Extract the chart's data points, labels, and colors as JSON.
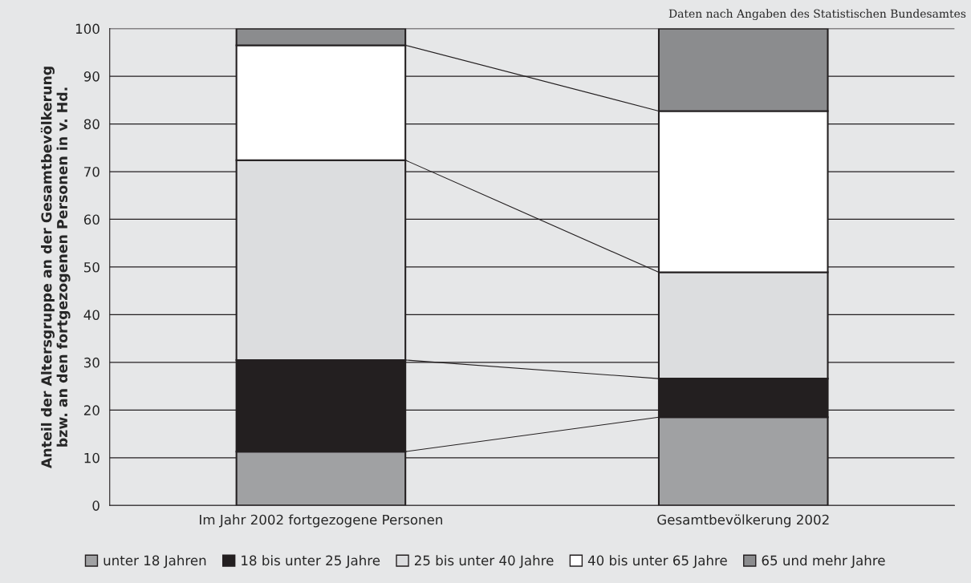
{
  "chart_data": {
    "type": "bar",
    "stacked": true,
    "ylabel": "Anteil der Altersgruppe an der Gesamtbevölkerung\nbzw. an den fortgezogenen Personen in v. Hd.",
    "categories": [
      "Im Jahr 2002 fortgezogene Personen",
      "Gesamtbevölkerung 2002"
    ],
    "series": [
      {
        "name": "unter 18 Jahren",
        "color": "#a0a1a3",
        "values": [
          11.3,
          18.5
        ]
      },
      {
        "name": "18 bis unter 25 Jahre",
        "color": "#231f20",
        "values": [
          19.2,
          8.1
        ]
      },
      {
        "name": "25 bis unter 40 Jahre",
        "color": "#dcdddf",
        "values": [
          41.9,
          22.3
        ]
      },
      {
        "name": "40 bis unter 65 Jahre",
        "color": "#ffffff",
        "values": [
          24.1,
          33.8
        ]
      },
      {
        "name": "65 und mehr Jahre",
        "color": "#8b8c8e",
        "values": [
          3.5,
          17.3
        ]
      }
    ],
    "ylim": [
      0,
      100
    ],
    "yticks": [
      0,
      10,
      20,
      30,
      40,
      50,
      60,
      70,
      80,
      90,
      100
    ],
    "grid": "y",
    "legend": "bottom",
    "annotations": [
      "Daten nach Angaben des Statistischen Bundesamtes"
    ]
  }
}
